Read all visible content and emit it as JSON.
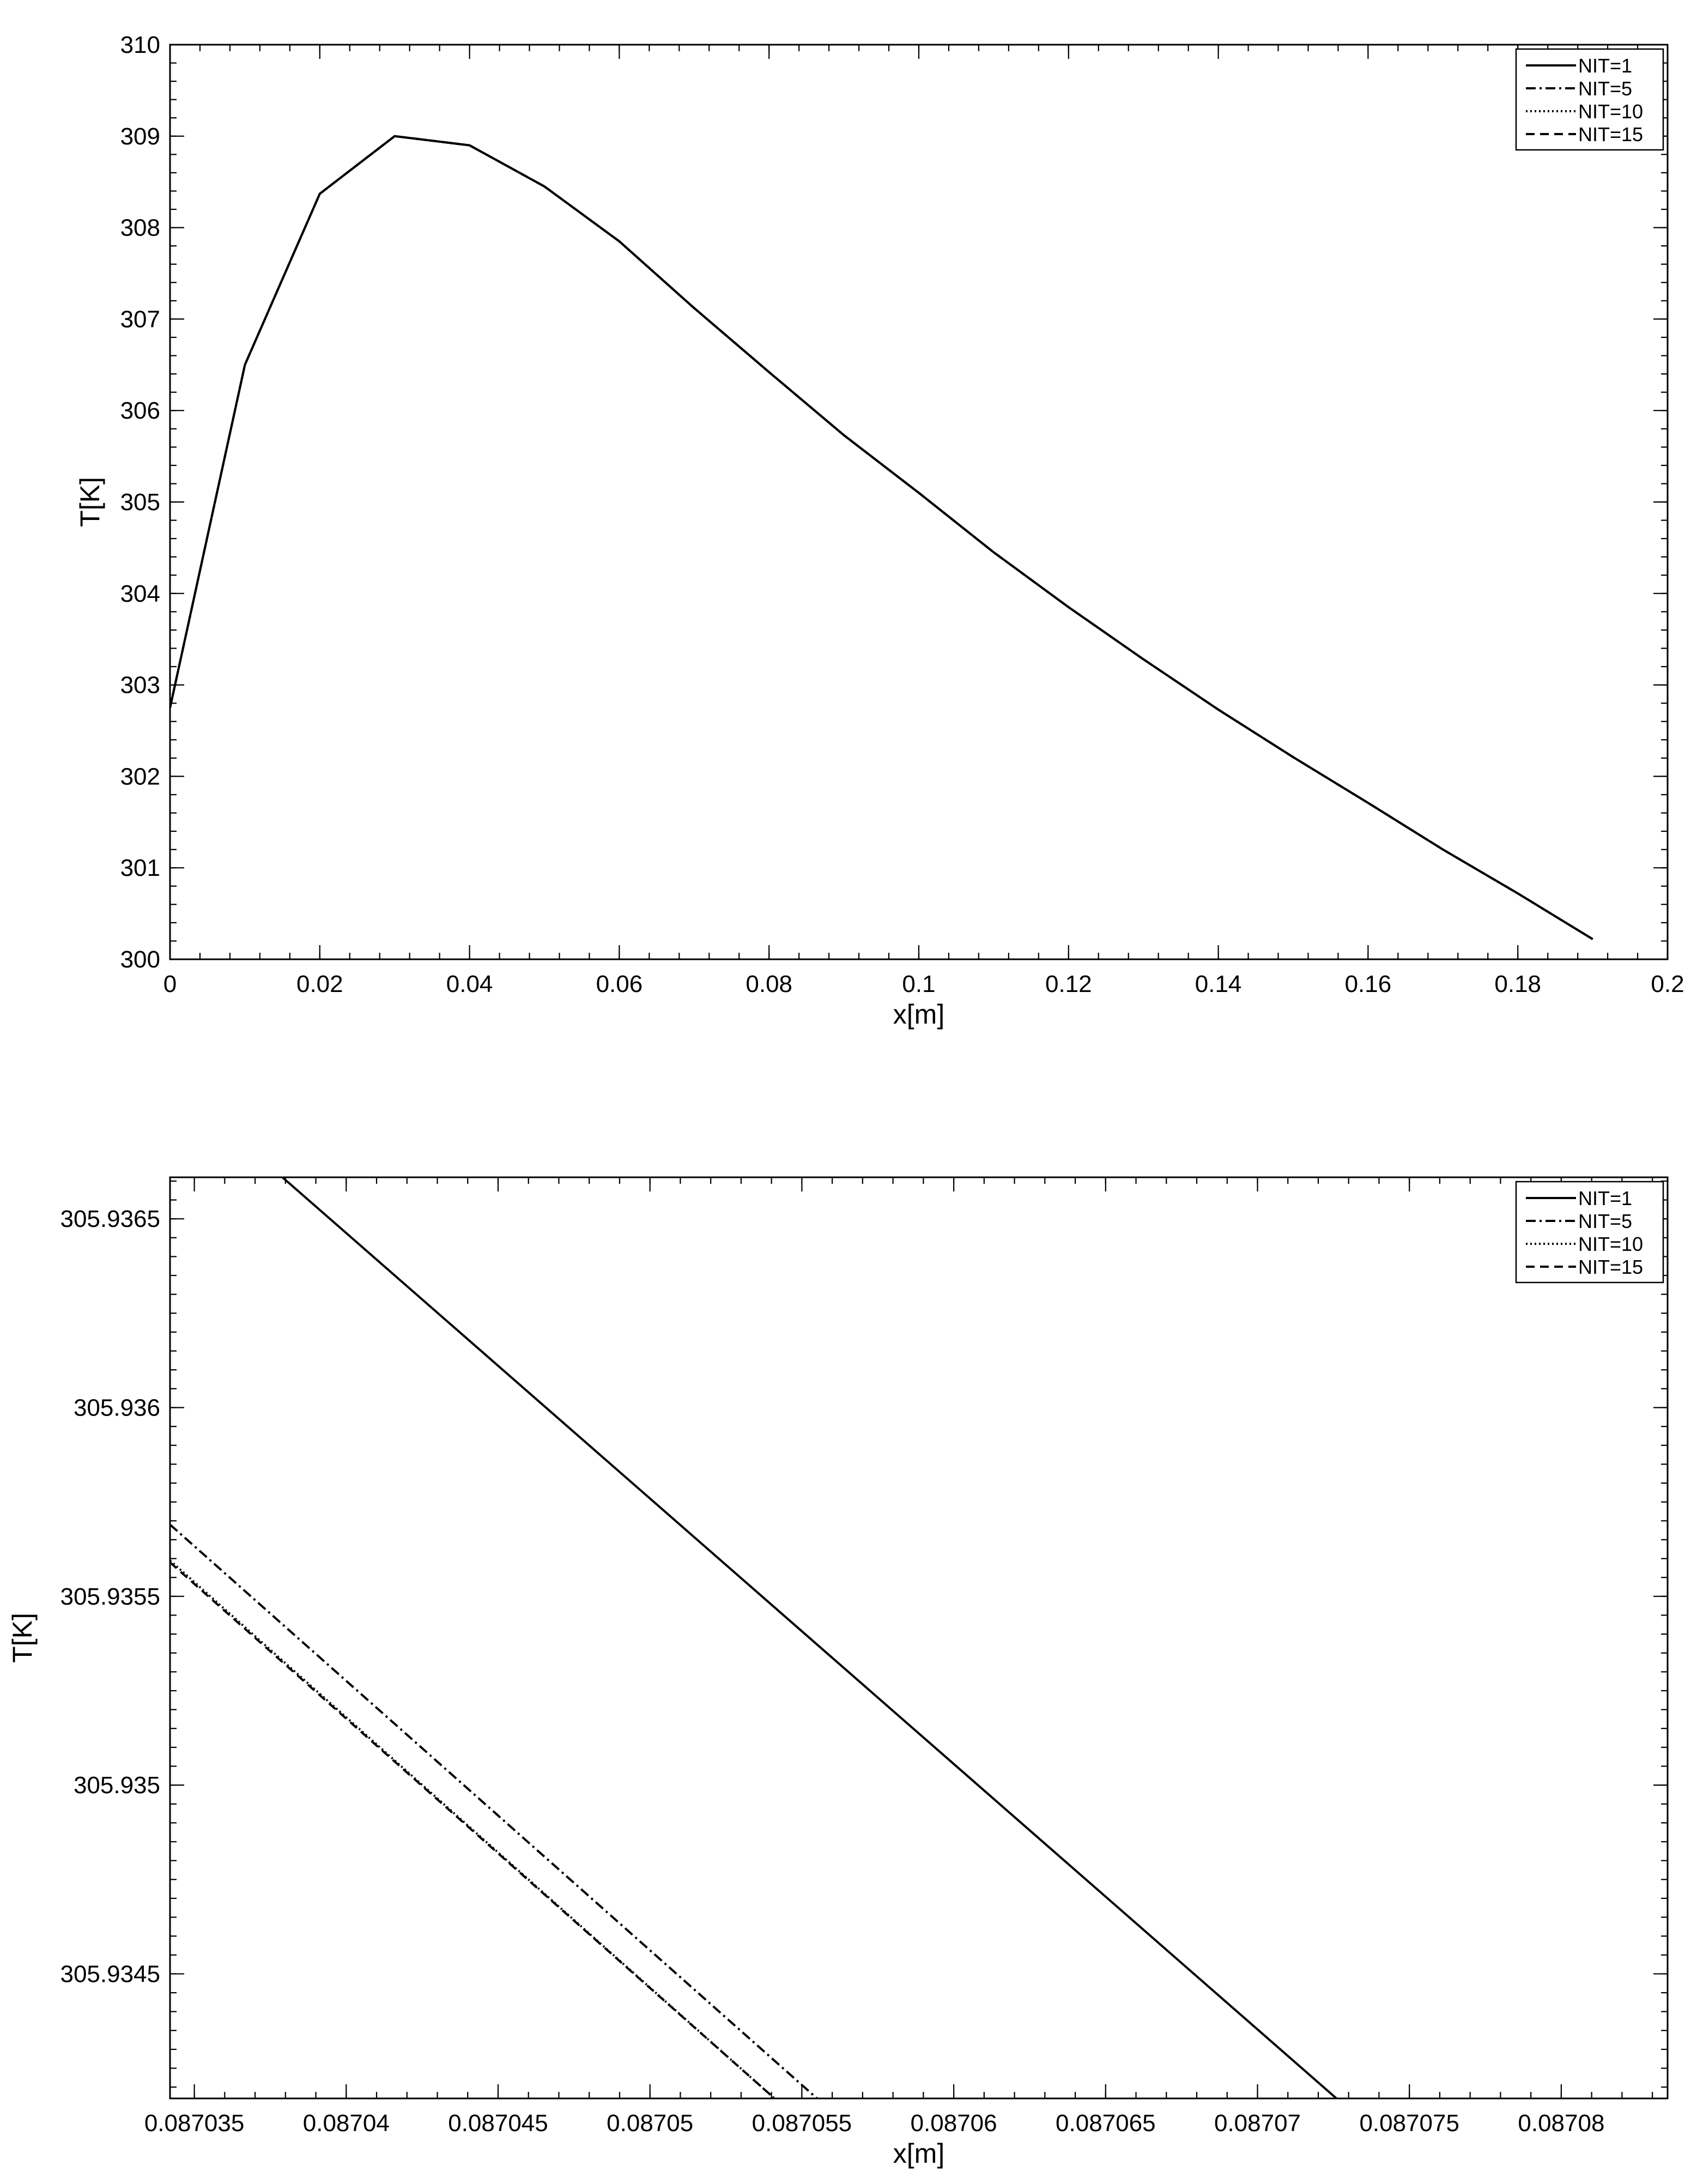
{
  "chart_data": [
    {
      "type": "line",
      "title": "",
      "xlabel": "x[m]",
      "ylabel": "T[K]",
      "xlim": [
        0,
        0.2
      ],
      "ylim": [
        300,
        310
      ],
      "xticks": [
        0,
        0.02,
        0.04,
        0.06,
        0.08,
        0.1,
        0.12,
        0.14,
        0.16,
        0.18,
        0.2
      ],
      "xtick_labels": [
        "0",
        "0.02",
        "0.04",
        "0.06",
        "0.08",
        "0.1",
        "0.12",
        "0.14",
        "0.16",
        "0.18",
        "0.2"
      ],
      "yticks": [
        300,
        301,
        302,
        303,
        304,
        305,
        306,
        307,
        308,
        309,
        310
      ],
      "ytick_labels": [
        "300",
        "301",
        "302",
        "303",
        "304",
        "305",
        "306",
        "307",
        "308",
        "309",
        "310"
      ],
      "legend_position": "top-right",
      "grid": false,
      "series": [
        {
          "name": "NIT=1",
          "dash": "solid",
          "x": [
            0,
            0.01,
            0.02,
            0.03,
            0.04,
            0.05,
            0.06,
            0.07,
            0.08,
            0.09,
            0.1,
            0.11,
            0.12,
            0.13,
            0.14,
            0.15,
            0.16,
            0.17,
            0.18,
            0.19
          ],
          "y": [
            302.75,
            306.5,
            308.37,
            309.0,
            308.9,
            308.45,
            307.85,
            307.12,
            306.42,
            305.73,
            305.1,
            304.45,
            303.85,
            303.28,
            302.73,
            302.21,
            301.71,
            301.2,
            300.72,
            300.22
          ]
        },
        {
          "name": "NIT=5",
          "dash": "dashdot",
          "x": [
            0,
            0.01,
            0.02,
            0.03,
            0.04,
            0.05,
            0.06,
            0.07,
            0.08,
            0.09,
            0.1,
            0.11,
            0.12,
            0.13,
            0.14,
            0.15,
            0.16,
            0.17,
            0.18,
            0.19
          ],
          "y": [
            302.75,
            306.5,
            308.37,
            309.0,
            308.9,
            308.45,
            307.85,
            307.12,
            306.42,
            305.73,
            305.1,
            304.45,
            303.85,
            303.28,
            302.73,
            302.21,
            301.71,
            301.2,
            300.72,
            300.22
          ]
        },
        {
          "name": "NIT=10",
          "dash": "dotted",
          "x": [
            0,
            0.01,
            0.02,
            0.03,
            0.04,
            0.05,
            0.06,
            0.07,
            0.08,
            0.09,
            0.1,
            0.11,
            0.12,
            0.13,
            0.14,
            0.15,
            0.16,
            0.17,
            0.18,
            0.19
          ],
          "y": [
            302.75,
            306.5,
            308.37,
            309.0,
            308.9,
            308.45,
            307.85,
            307.12,
            306.42,
            305.73,
            305.1,
            304.45,
            303.85,
            303.28,
            302.73,
            302.21,
            301.71,
            301.2,
            300.72,
            300.22
          ]
        },
        {
          "name": "NIT=15",
          "dash": "dashed",
          "x": [
            0,
            0.01,
            0.02,
            0.03,
            0.04,
            0.05,
            0.06,
            0.07,
            0.08,
            0.09,
            0.1,
            0.11,
            0.12,
            0.13,
            0.14,
            0.15,
            0.16,
            0.17,
            0.18,
            0.19
          ],
          "y": [
            302.75,
            306.5,
            308.37,
            309.0,
            308.9,
            308.45,
            307.85,
            307.12,
            306.42,
            305.73,
            305.1,
            304.45,
            303.85,
            303.28,
            302.73,
            302.21,
            301.71,
            301.2,
            300.72,
            300.22
          ]
        }
      ]
    },
    {
      "type": "line",
      "title": "",
      "xlabel": "x[m]",
      "ylabel": "T[K]",
      "xlim": [
        0.0870342,
        0.0870835
      ],
      "ylim": [
        305.93417,
        305.93661
      ],
      "xticks": [
        0.087035,
        0.08704,
        0.087045,
        0.08705,
        0.087055,
        0.08706,
        0.087065,
        0.08707,
        0.087075,
        0.08708
      ],
      "xtick_labels": [
        "0.087035",
        "0.08704",
        "0.087045",
        "0.08705",
        "0.087055",
        "0.08706",
        "0.087065",
        "0.08707",
        "0.087075",
        "0.08708"
      ],
      "yticks": [
        305.9345,
        305.935,
        305.9355,
        305.936,
        305.9365
      ],
      "ytick_labels": [
        "305.9345",
        "305.935",
        "305.9355",
        "305.936",
        "305.9365"
      ],
      "legend_position": "top-right",
      "grid": false,
      "series": [
        {
          "name": "NIT=1",
          "dash": "solid",
          "x": [
            0.0870379,
            0.0870726
          ],
          "y": [
            305.93661,
            305.93417
          ]
        },
        {
          "name": "NIT=5",
          "dash": "dashdot",
          "x": [
            0.0870342,
            0.0870555
          ],
          "y": [
            305.93569,
            305.93417
          ]
        },
        {
          "name": "NIT=10",
          "dash": "dotted",
          "x": [
            0.0870342,
            0.0870541
          ],
          "y": [
            305.935595,
            305.93417
          ]
        },
        {
          "name": "NIT=15",
          "dash": "dashed",
          "x": [
            0.0870342,
            0.0870541
          ],
          "y": [
            305.93559,
            305.93417
          ]
        }
      ]
    }
  ]
}
